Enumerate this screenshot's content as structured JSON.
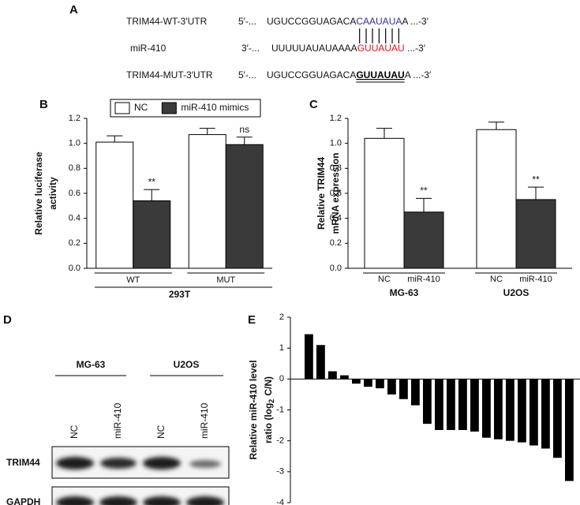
{
  "panel_labels": [
    "A",
    "B",
    "C",
    "D",
    "E"
  ],
  "sequences": [
    {
      "name": "TRIM44-WT-3′UTR",
      "end5": "5′-...",
      "pre": "UGUCCGGUAGACA",
      "site": "CAAUAUA",
      "post": "A ...-3′",
      "site_color": "#2e3192"
    },
    {
      "name": "miR-410",
      "end5": "3′-...",
      "pre": "UUUUUAUAUAAAA",
      "site": "GUUAUAU",
      "post": " ...-3′",
      "site_color": "#e0141e"
    },
    {
      "name": "TRIM44-MUT-3′UTR",
      "end5": "5′-...",
      "pre": "UGUCCGGUAGACA",
      "site": "GUUAUAU",
      "post": "A ...-3′",
      "site_color": "#000000"
    }
  ],
  "chart_data": [
    {
      "type": "grouped_bar",
      "y_label": [
        "Relative luciferase",
        "activity"
      ],
      "x_label": "293T",
      "categories": [
        "WT",
        "MUT"
      ],
      "series": [
        {
          "name": "NC",
          "color": "#ffffff",
          "values": [
            1.01,
            1.07
          ],
          "errors": [
            0.05,
            0.05
          ],
          "significance": [
            null,
            null
          ]
        },
        {
          "name": "miR-410 mimics",
          "color": "#3a3a3a",
          "values": [
            0.54,
            0.99
          ],
          "errors": [
            0.09,
            0.06
          ],
          "significance": [
            "**",
            "ns"
          ]
        }
      ],
      "ylim": [
        0,
        1.2
      ],
      "yticks": [
        {
          "value": 0,
          "label": "0.0"
        },
        0.2,
        0.4,
        0.6,
        0.8,
        {
          "value": 1,
          "label": "1.0"
        },
        1.2
      ],
      "legend": "top"
    },
    {
      "type": "grouped_bar",
      "y_label": [
        "Relative TRIM44",
        "mRNA expression"
      ],
      "categories": [
        "MG-63",
        "U2OS"
      ],
      "series": [
        {
          "name": "NC",
          "color": "#ffffff",
          "values": [
            1.04,
            1.11
          ],
          "errors": [
            0.08,
            0.06
          ],
          "significance": [
            null,
            null
          ]
        },
        {
          "name": "miR-410",
          "color": "#3a3a3a",
          "values": [
            0.45,
            0.55
          ],
          "errors": [
            0.11,
            0.1
          ],
          "significance": [
            "**",
            "**"
          ]
        }
      ],
      "ylim": [
        0,
        1.2
      ],
      "yticks": [
        {
          "value": 0,
          "label": "0.0"
        },
        0.2,
        0.4,
        0.6,
        0.8,
        {
          "value": 1,
          "label": "1.0"
        },
        1.2
      ],
      "legend": "none"
    },
    {
      "type": "bar",
      "y_label": {
        "line1": "Relative miR-410 level",
        "line2": "ratio (log",
        "subscript": "2",
        "line2_end": "C/N)"
      },
      "values": [
        1.45,
        1.1,
        0.25,
        0.12,
        -0.15,
        -0.25,
        -0.3,
        -0.5,
        -0.65,
        -0.85,
        -1.45,
        -1.65,
        -1.65,
        -1.65,
        -1.7,
        -1.9,
        -1.95,
        -2.0,
        -2.05,
        -2.15,
        -2.25,
        -2.55,
        -3.3
      ],
      "color": "#000000",
      "ylim": [
        -4,
        2
      ],
      "yticks": [
        -4,
        -3,
        -2,
        -1,
        0,
        1,
        2
      ]
    }
  ],
  "blot": {
    "groups": [
      "MG-63",
      "U2OS"
    ],
    "lanes": [
      "NC",
      "miR-410",
      "NC",
      "miR-410"
    ],
    "rows": [
      "TRIM44",
      "GAPDH"
    ]
  }
}
